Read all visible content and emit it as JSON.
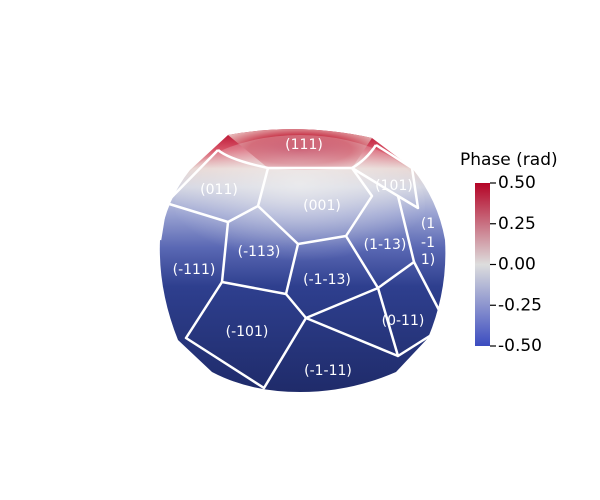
{
  "facets": [
    {
      "id": "f111",
      "label": "(111)"
    },
    {
      "id": "f011",
      "label": "(011)"
    },
    {
      "id": "f101",
      "label": "(101)"
    },
    {
      "id": "f001",
      "label": "(001)"
    },
    {
      "id": "fm113",
      "label": "(-113)"
    },
    {
      "id": "f1m13",
      "label": "(1-13)"
    },
    {
      "id": "fm111",
      "label": "(-111)"
    },
    {
      "id": "fm1m13",
      "label": "(-1-13)"
    },
    {
      "id": "fm101",
      "label": "(-101)"
    },
    {
      "id": "f0m11",
      "label": "(0-11)"
    },
    {
      "id": "fm1m11",
      "label": "(-1-11)"
    },
    {
      "id": "fpartial_l1",
      "label": "(1"
    },
    {
      "id": "fpartial_l2",
      "label": "-1"
    },
    {
      "id": "fpartial_l3",
      "label": "1)"
    }
  ],
  "colorbar": {
    "title": "Phase (rad)",
    "min": -0.5,
    "max": 0.5,
    "ticks": [
      "0.50",
      "0.25",
      "0.00",
      "-0.25",
      "-0.50"
    ],
    "colors": {
      "high": "#b40426",
      "mid": "#dddddd",
      "low": "#3b4cc0"
    }
  }
}
